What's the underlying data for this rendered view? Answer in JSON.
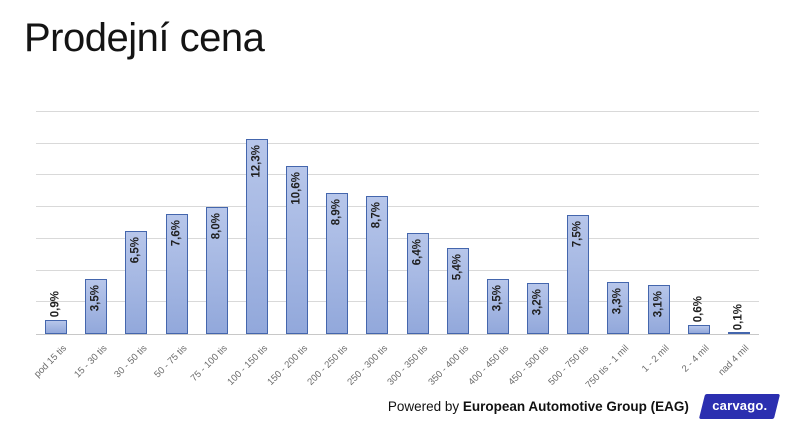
{
  "title": "Prodejní cena",
  "footer": {
    "powered_by_prefix": "Powered by ",
    "powered_by_org": "European Automotive Group (EAG)",
    "logo_text": "carvago."
  },
  "colors": {
    "bar_fill_top": "#b7c6ea",
    "bar_fill_bottom": "#92a8db",
    "bar_border": "#4466ad",
    "gridline": "#d9d9d9",
    "axis_line": "#c8c8c8",
    "xlabel": "#6b6b6b",
    "dlabel": "#1f1f1f",
    "logo_bg": "#2b2fb0"
  },
  "chart_data": {
    "type": "bar",
    "title": "Prodejní cena",
    "xlabel": "",
    "ylabel": "",
    "categories": [
      "pod 15 tis",
      "15 - 30 tis",
      "30 - 50 tis",
      "50 - 75 tis",
      "75 - 100 tis",
      "100 - 150 tis",
      "150 - 200 tis",
      "200 - 250 tis",
      "250 - 300 tis",
      "300 - 350 tis",
      "350 - 400 tis",
      "400 - 450 tis",
      "450 - 500 tis",
      "500 - 750 tis",
      "750 tis - 1 mil",
      "1 - 2 mil",
      "2 - 4 mil",
      "nad 4 mil"
    ],
    "values": [
      0.9,
      3.5,
      6.5,
      7.6,
      8.0,
      12.3,
      10.6,
      8.9,
      8.7,
      6.4,
      5.4,
      3.5,
      3.2,
      7.5,
      3.3,
      3.1,
      0.6,
      0.1
    ],
    "value_labels": [
      "0,9%",
      "3,5%",
      "6,5%",
      "7,6%",
      "8,0%",
      "12,3%",
      "10,6%",
      "8,9%",
      "8,7%",
      "6,4%",
      "5,4%",
      "3,5%",
      "3,2%",
      "7,5%",
      "3,3%",
      "3,1%",
      "0,6%",
      "0,1%"
    ],
    "ylim": [
      0,
      14
    ],
    "grid_step": 2,
    "grid": true,
    "legend": false,
    "y_axis_labels_visible": false,
    "data_label_rotation_deg": -90,
    "x_label_rotation_deg": -45
  }
}
